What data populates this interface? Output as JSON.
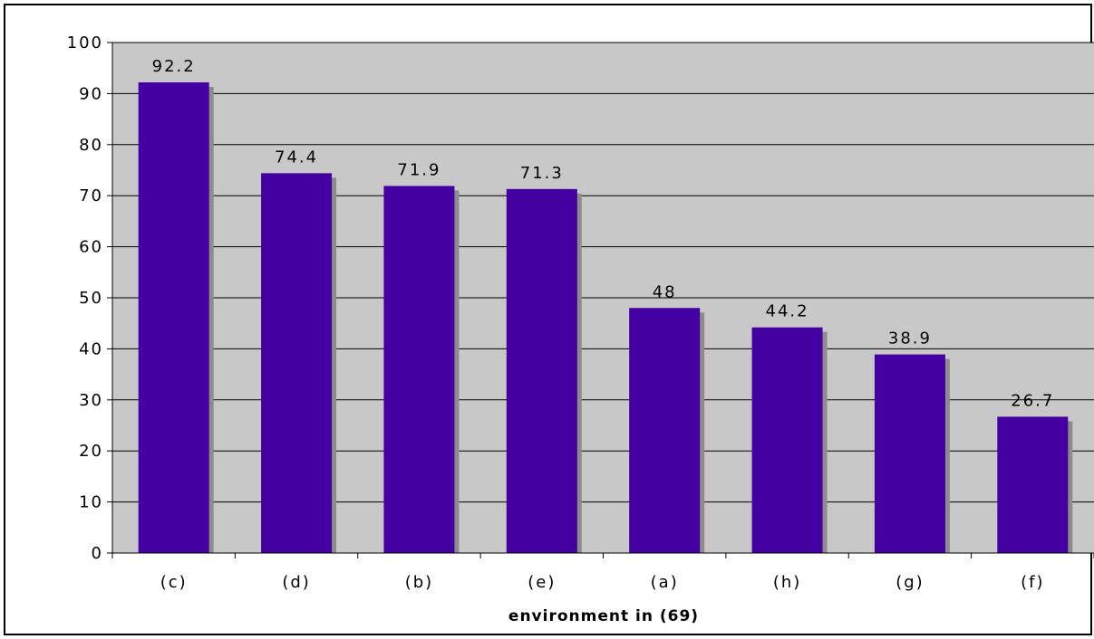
{
  "chart_data": {
    "type": "bar",
    "categories": [
      "(c)",
      "(d)",
      "(b)",
      "(e)",
      "(a)",
      "(h)",
      "(g)",
      "(f)"
    ],
    "values": [
      92.2,
      74.4,
      71.9,
      71.3,
      48,
      44.2,
      38.9,
      26.7
    ],
    "data_labels": [
      "92.2",
      "74.4",
      "71.9",
      "71.3",
      "48",
      "44.2",
      "38.9",
      "26.7"
    ],
    "title": "",
    "xlabel": "environment in (69)",
    "ylabel": "",
    "ylim": [
      0,
      100
    ],
    "yticks": [
      0,
      10,
      20,
      30,
      40,
      50,
      60,
      70,
      80,
      90,
      100
    ],
    "grid": "horizontal",
    "legend": "none",
    "colors": {
      "bar": "#4400a0",
      "bar_shadow": "#8c8c8c",
      "plot_background": "#c8c8c8",
      "gridline": "#000000"
    }
  }
}
